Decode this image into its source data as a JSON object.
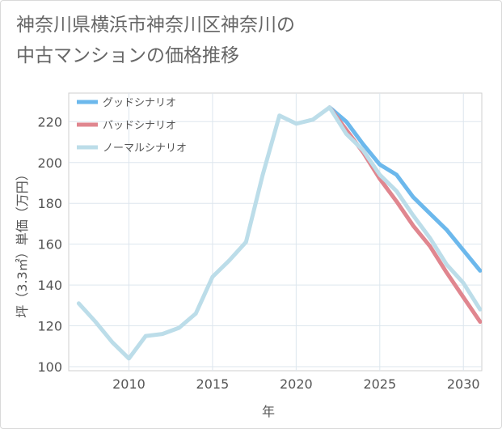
{
  "page": {
    "title_line1": "神奈川県横浜市神奈川区神奈川の",
    "title_line2": "中古マンションの価格推移"
  },
  "chart_data": {
    "type": "line",
    "title": "神奈川県横浜市神奈川区神奈川の中古マンションの価格推移",
    "xlabel": "年",
    "ylabel": "坪（3.3㎡）単価（万円）",
    "xlim": [
      2006.4,
      2031.1
    ],
    "ylim": [
      98,
      234
    ],
    "xticks": [
      2010,
      2015,
      2020,
      2025,
      2030
    ],
    "yticks": [
      100,
      120,
      140,
      160,
      180,
      200,
      220
    ],
    "grid": true,
    "legend_position": "top-left",
    "series": [
      {
        "name": "グッドシナリオ",
        "color": "#6cb8ec",
        "x": [
          2022,
          2023,
          2024,
          2025,
          2026,
          2027,
          2028,
          2029,
          2030,
          2031
        ],
        "values": [
          227,
          220,
          209,
          199,
          194,
          183,
          175,
          167,
          157,
          147
        ]
      },
      {
        "name": "バッドシナリオ",
        "color": "#e0868f",
        "x": [
          2022,
          2023,
          2024,
          2025,
          2026,
          2027,
          2028,
          2029,
          2030,
          2031
        ],
        "values": [
          227,
          216,
          205,
          192,
          181,
          169,
          159,
          146,
          134,
          122
        ]
      },
      {
        "name": "ノーマルシナリオ",
        "color": "#bcdde9",
        "x": [
          2007,
          2008,
          2009,
          2010,
          2011,
          2012,
          2013,
          2014,
          2015,
          2016,
          2017,
          2018,
          2019,
          2020,
          2021,
          2022,
          2023,
          2024,
          2025,
          2026,
          2027,
          2028,
          2029,
          2030,
          2031
        ],
        "values": [
          131,
          122,
          112,
          104,
          115,
          116,
          119,
          126,
          144,
          152,
          161,
          194,
          223,
          219,
          221,
          227,
          214,
          206,
          194,
          186,
          174,
          163,
          150,
          141,
          128
        ]
      }
    ]
  }
}
